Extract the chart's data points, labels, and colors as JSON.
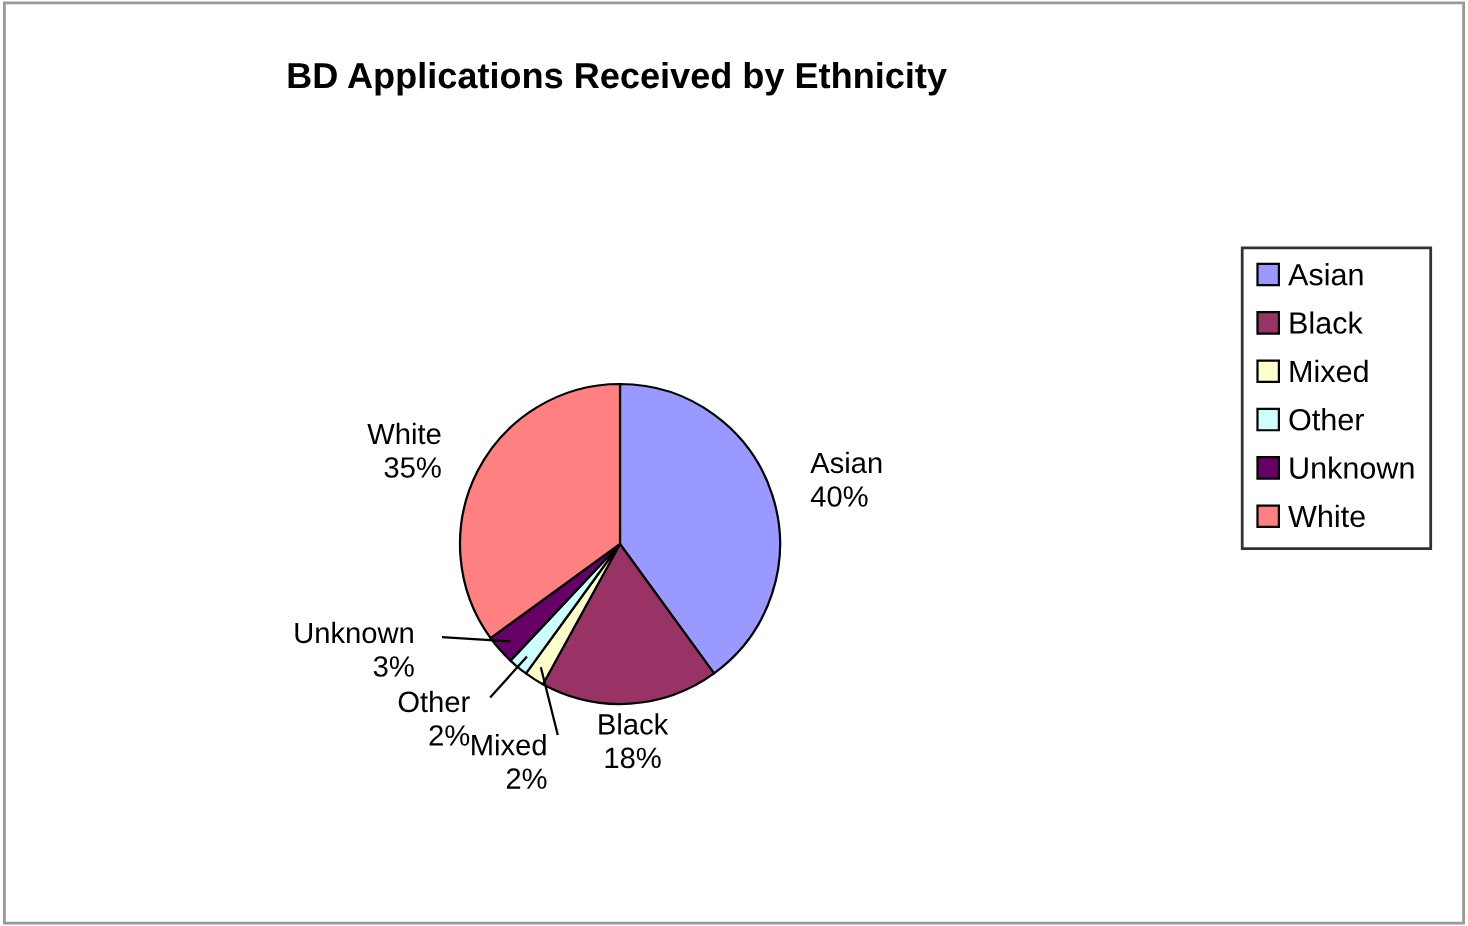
{
  "chart_data": {
    "type": "pie",
    "title": "BD Applications Received by Ethnicity",
    "categories": [
      "Asian",
      "Black",
      "Mixed",
      "Other",
      "Unknown",
      "White"
    ],
    "values": [
      40,
      18,
      2,
      2,
      3,
      35
    ],
    "value_labels": [
      "40%",
      "18%",
      "2%",
      "2%",
      "3%",
      "35%"
    ],
    "colors": [
      "#9999ff",
      "#993366",
      "#ffffcc",
      "#ccffff",
      "#660066",
      "#ff8080"
    ],
    "legend": "right"
  }
}
